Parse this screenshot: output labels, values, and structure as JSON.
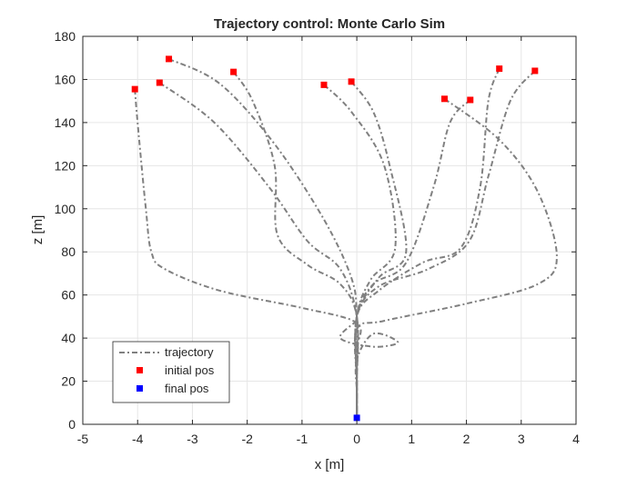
{
  "chart_data": {
    "type": "line",
    "title": "Trajectory control: Monte Carlo Sim",
    "xlabel": "x [m]",
    "ylabel": "z [m]",
    "xlim": [
      -5,
      4
    ],
    "ylim": [
      0,
      180
    ],
    "grid": true,
    "legend_position": "bottom-left",
    "x_ticks": [
      "-5",
      "-4",
      "-3",
      "-2",
      "-1",
      "0",
      "1",
      "2",
      "3",
      "4"
    ],
    "y_ticks": [
      "0",
      "20",
      "40",
      "60",
      "80",
      "100",
      "120",
      "140",
      "160",
      "180"
    ],
    "legend": {
      "trajectory": "trajectory",
      "initial": "initial pos",
      "final": "final pos"
    },
    "colors": {
      "trajectory": "#808080",
      "initial": "#ff0000",
      "final": "#0000ff",
      "grid": "#e6e6e6",
      "axes": "#262626"
    },
    "initial_positions": [
      {
        "x": -4.05,
        "y": 155.5
      },
      {
        "x": -3.6,
        "y": 158.5
      },
      {
        "x": -3.43,
        "y": 169.5
      },
      {
        "x": -2.25,
        "y": 163.5
      },
      {
        "x": -0.6,
        "y": 157.5
      },
      {
        "x": -0.1,
        "y": 159
      },
      {
        "x": 1.6,
        "y": 151
      },
      {
        "x": 2.07,
        "y": 150.5
      },
      {
        "x": 2.6,
        "y": 165
      },
      {
        "x": 3.25,
        "y": 164
      }
    ],
    "final_positions": [
      {
        "x": 0,
        "y": 3
      }
    ],
    "series": [
      {
        "x": [
          -4.05,
          -4.0,
          -3.85,
          -3.75,
          -3.5,
          -2.5,
          -1.0,
          0,
          0,
          0,
          0
        ],
        "y": [
          155.5,
          140,
          100,
          80,
          72,
          62,
          54,
          47,
          35,
          20,
          3
        ]
      },
      {
        "x": [
          -3.6,
          -2.6,
          -1.6,
          -0.9,
          -0.3,
          0,
          0,
          0
        ],
        "y": [
          158.5,
          140,
          110,
          85,
          72,
          50,
          20,
          3
        ]
      },
      {
        "x": [
          -3.43,
          -2.5,
          -1.5,
          -0.6,
          -0.1,
          0,
          0,
          0
        ],
        "y": [
          169.5,
          158,
          130,
          95,
          68,
          50,
          20,
          3
        ]
      },
      {
        "x": [
          -2.25,
          -1.9,
          -1.5,
          -1.45,
          -0.9,
          -0.3,
          0,
          0,
          0
        ],
        "y": [
          163.5,
          150,
          120,
          88,
          74,
          65,
          50,
          20,
          3
        ]
      },
      {
        "x": [
          -0.6,
          -0.1,
          0.5,
          0.7,
          0.25,
          0,
          0,
          0
        ],
        "y": [
          157.5,
          145,
          120,
          82,
          67,
          50,
          20,
          3
        ]
      },
      {
        "x": [
          -0.1,
          0.3,
          0.6,
          0.9,
          0.4,
          0,
          0,
          0
        ],
        "y": [
          159,
          145,
          120,
          80,
          68,
          50,
          20,
          3
        ]
      },
      {
        "x": [
          1.6,
          2.6,
          3.3,
          3.65,
          3.3,
          2.0,
          0.5,
          0,
          0,
          0
        ],
        "y": [
          151,
          132,
          108,
          78,
          65,
          56,
          48,
          44,
          20,
          3
        ]
      },
      {
        "x": [
          2.07,
          1.7,
          1.4,
          0.9,
          0.3,
          0,
          0,
          0
        ],
        "y": [
          150.5,
          140,
          110,
          75,
          65,
          50,
          20,
          3
        ]
      },
      {
        "x": [
          2.6,
          2.4,
          2.25,
          1.9,
          1.2,
          0.4,
          0,
          0,
          0
        ],
        "y": [
          165,
          150,
          110,
          82,
          75,
          62,
          50,
          20,
          3
        ]
      },
      {
        "x": [
          3.25,
          2.8,
          2.4,
          2.05,
          1.3,
          0.4,
          0,
          0,
          0
        ],
        "y": [
          164,
          150,
          115,
          85,
          72,
          64,
          50,
          20,
          3
        ]
      },
      {
        "x": [
          0,
          -0.3,
          0.3,
          0.75,
          0.3,
          0,
          0,
          0
        ],
        "y": [
          48,
          40,
          36,
          38,
          42,
          30,
          15,
          3
        ]
      }
    ]
  }
}
